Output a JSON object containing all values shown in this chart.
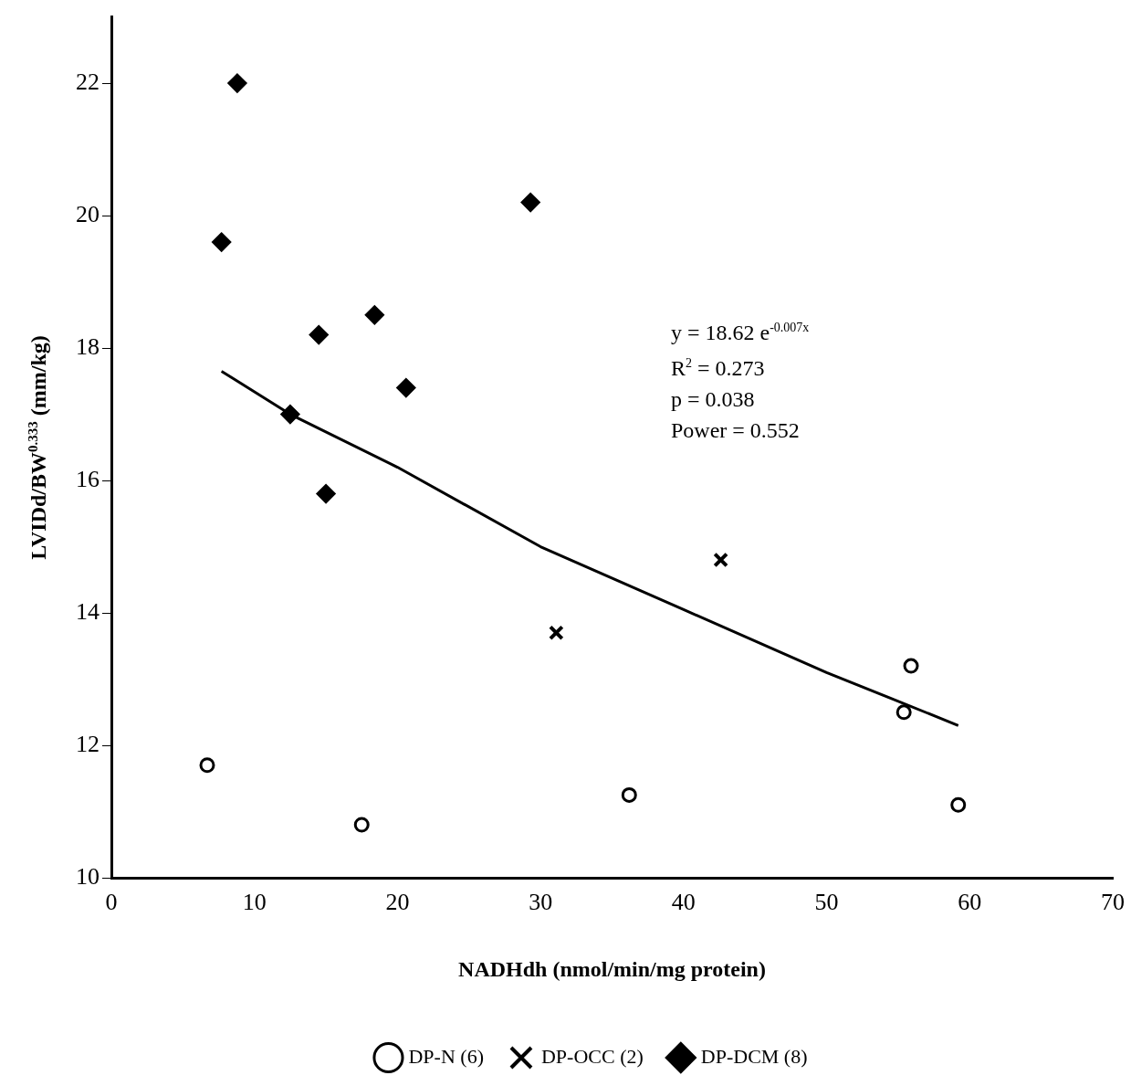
{
  "chart_data": {
    "type": "scatter",
    "xlabel": "NADHdh (nmol/min/mg protein)",
    "ylabel": "LVIDd/BW$^{0.333}$ (mm/kg)",
    "xlim": [
      0,
      70
    ],
    "xticks": [
      0,
      10,
      20,
      30,
      40,
      50,
      60,
      70
    ],
    "ylim": [
      10,
      23
    ],
    "yticks": [
      10,
      12,
      14,
      16,
      18,
      20,
      22
    ],
    "legend": "bottom",
    "grid": false,
    "annotations": [
      "y = 18.62 e$^{-0.007x}$",
      "R$^{2}$ = 0.273",
      "p = 0.038",
      "Power = 0.552"
    ],
    "series": [
      {
        "name": "DP-N (6)",
        "color": "#000000",
        "marker": "circle",
        "x": [
          6.7,
          17.5,
          36.2,
          55.4,
          55.9,
          59.2
        ],
        "values": [
          11.7,
          10.8,
          11.25,
          12.5,
          13.2,
          11.1
        ]
      },
      {
        "name": "DP-OCC (2)",
        "color": "#000000",
        "marker": "cross",
        "x": [
          31.1,
          42.6
        ],
        "values": [
          13.7,
          14.8
        ]
      },
      {
        "name": "DP-DCM (8)",
        "color": "#000000",
        "marker": "diamond",
        "x": [
          8.8,
          7.7,
          14.5,
          18.4,
          20.6,
          12.5,
          15.0,
          29.3
        ],
        "values": [
          22.0,
          19.6,
          18.2,
          18.5,
          17.4,
          17.0,
          15.8,
          20.2
        ]
      },
      {
        "type": "line",
        "color": "#000000",
        "marker": "none",
        "x": [
          7.7,
          12.5,
          20,
          30,
          40,
          50,
          59.2
        ],
        "values": [
          17.65,
          17.0,
          16.2,
          15.0,
          14.05,
          13.1,
          12.3
        ]
      }
    ]
  }
}
